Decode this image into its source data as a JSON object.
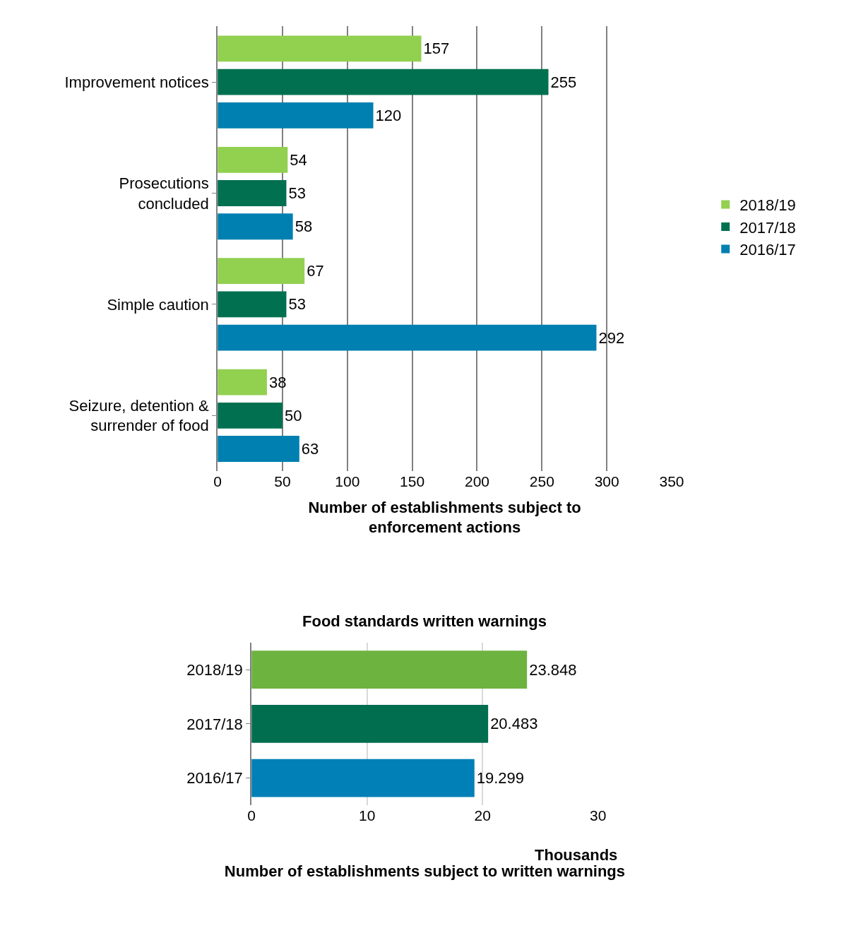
{
  "chart_data": [
    {
      "type": "bar",
      "orientation": "horizontal",
      "categories": [
        "Improvement notices",
        "Prosecutions concluded",
        "Simple caution",
        "Seizure, detention & surrender of food"
      ],
      "series": [
        {
          "name": "2018/19",
          "color": "#92d050",
          "values": [
            157,
            54,
            67,
            38
          ]
        },
        {
          "name": "2017/18",
          "color": "#007050",
          "values": [
            255,
            53,
            53,
            50
          ]
        },
        {
          "name": "2016/17",
          "color": "#0080b0",
          "values": [
            120,
            58,
            292,
            63
          ]
        }
      ],
      "xlim": [
        0,
        350
      ],
      "xticks": [
        0,
        50,
        100,
        150,
        200,
        250,
        300,
        350
      ],
      "grid": "x",
      "legend": "right",
      "data_labels": true,
      "xlabel": "Number of establishments subject to enforcement actions"
    },
    {
      "type": "bar",
      "orientation": "horizontal",
      "title": "Food standards written warnings",
      "categories": [
        "2018/19",
        "2017/18",
        "2016/17"
      ],
      "values": [
        23.848,
        20.483,
        19.299
      ],
      "colors": [
        "#6db33f",
        "#006e4f",
        "#0080b6"
      ],
      "xlim": [
        0,
        30
      ],
      "xticks": [
        0,
        10,
        20,
        30
      ],
      "grid": "x",
      "data_labels": true,
      "xlabel": "Number of establishments subject to written warnings",
      "annotations": [
        "Thousands"
      ]
    }
  ]
}
